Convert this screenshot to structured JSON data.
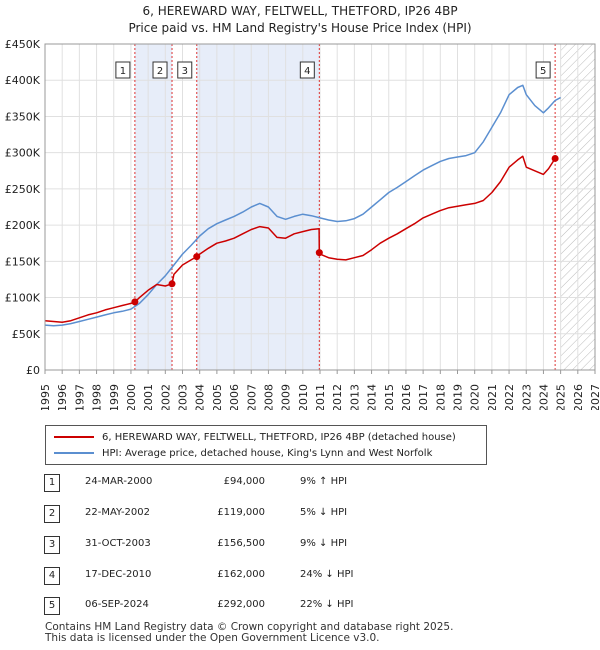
{
  "title_line1": "6, HEREWARD WAY, FELTWELL, THETFORD, IP26 4BP",
  "title_line2": "Price paid vs. HM Land Registry's House Price Index (HPI)",
  "chart_data": {
    "type": "line",
    "title": "6, HEREWARD WAY, FELTWELL, THETFORD, IP26 4BP — Price paid vs. HM Land Registry's House Price Index (HPI)",
    "xlabel": "",
    "ylabel": "",
    "xlim": [
      1995,
      2027
    ],
    "ylim": [
      0,
      450000
    ],
    "x_ticks": [
      "1995",
      "1996",
      "1997",
      "1998",
      "1999",
      "2000",
      "2001",
      "2002",
      "2003",
      "2004",
      "2005",
      "2006",
      "2007",
      "2008",
      "2009",
      "2010",
      "2011",
      "2012",
      "2013",
      "2014",
      "2015",
      "2016",
      "2017",
      "2018",
      "2019",
      "2020",
      "2021",
      "2022",
      "2023",
      "2024",
      "2025",
      "2026",
      "2027"
    ],
    "y_ticks": [
      {
        "value": 0,
        "label": "£0"
      },
      {
        "value": 50000,
        "label": "£50K"
      },
      {
        "value": 100000,
        "label": "£100K"
      },
      {
        "value": 150000,
        "label": "£150K"
      },
      {
        "value": 200000,
        "label": "£200K"
      },
      {
        "value": 250000,
        "label": "£250K"
      },
      {
        "value": 300000,
        "label": "£300K"
      },
      {
        "value": 350000,
        "label": "£350K"
      },
      {
        "value": 400000,
        "label": "£400K"
      },
      {
        "value": 450000,
        "label": "£450K"
      }
    ],
    "grid": true,
    "shaded_ranges": [
      [
        2000.23,
        2002.39
      ],
      [
        2003.83,
        2010.96
      ]
    ],
    "future_hatch_start": 2025.0,
    "series": [
      {
        "name": "6, HEREWARD WAY, FELTWELL, THETFORD, IP26 4BP (detached house)",
        "color": "#cc0000",
        "x": [
          1995,
          1995.5,
          1996,
          1996.5,
          1997,
          1997.5,
          1998,
          1998.5,
          1999,
          1999.5,
          2000,
          2000.23,
          2000.5,
          2001,
          2001.5,
          2002,
          2002.39,
          2002.5,
          2003,
          2003.5,
          2003.83,
          2004,
          2004.5,
          2005,
          2005.5,
          2006,
          2006.5,
          2007,
          2007.5,
          2008,
          2008.5,
          2009,
          2009.5,
          2010,
          2010.5,
          2010.95,
          2010.96,
          2011,
          2011.5,
          2012,
          2012.5,
          2013,
          2013.5,
          2014,
          2014.5,
          2015,
          2015.5,
          2016,
          2016.5,
          2017,
          2017.5,
          2018,
          2018.5,
          2019,
          2019.5,
          2020,
          2020.5,
          2021,
          2021.5,
          2022,
          2022.5,
          2022.8,
          2023,
          2023.5,
          2024,
          2024.3,
          2024.68
        ],
        "values": [
          68000,
          67000,
          66000,
          68000,
          72000,
          76000,
          79000,
          83000,
          86000,
          89000,
          92000,
          94000,
          100000,
          110000,
          118000,
          116000,
          119000,
          132000,
          145000,
          152000,
          156500,
          160000,
          168000,
          175000,
          178000,
          182000,
          188000,
          194000,
          198000,
          196000,
          183000,
          182000,
          188000,
          191000,
          194000,
          195000,
          162000,
          160000,
          155000,
          153000,
          152000,
          155000,
          158000,
          166000,
          175000,
          182000,
          188000,
          195000,
          202000,
          210000,
          215000,
          220000,
          224000,
          226000,
          228000,
          230000,
          234000,
          245000,
          260000,
          280000,
          290000,
          295000,
          280000,
          275000,
          270000,
          278000,
          292000
        ]
      },
      {
        "name": "HPI: Average price, detached house, King's Lynn and West Norfolk",
        "color": "#5b8fd0",
        "x": [
          1995,
          1995.5,
          1996,
          1996.5,
          1997,
          1997.5,
          1998,
          1998.5,
          1999,
          1999.5,
          2000,
          2000.5,
          2001,
          2001.5,
          2002,
          2002.5,
          2003,
          2003.5,
          2004,
          2004.5,
          2005,
          2005.5,
          2006,
          2006.5,
          2007,
          2007.5,
          2008,
          2008.5,
          2009,
          2009.5,
          2010,
          2010.5,
          2011,
          2011.5,
          2012,
          2012.5,
          2013,
          2013.5,
          2014,
          2014.5,
          2015,
          2015.5,
          2016,
          2016.5,
          2017,
          2017.5,
          2018,
          2018.5,
          2019,
          2019.5,
          2020,
          2020.5,
          2021,
          2021.5,
          2022,
          2022.5,
          2022.8,
          2023,
          2023.5,
          2024,
          2024.3,
          2024.68,
          2025
        ],
        "values": [
          62000,
          61000,
          62000,
          64000,
          67000,
          70000,
          73000,
          76000,
          79000,
          81000,
          84000,
          92000,
          104000,
          118000,
          130000,
          145000,
          160000,
          172000,
          185000,
          195000,
          202000,
          207000,
          212000,
          218000,
          225000,
          230000,
          225000,
          212000,
          208000,
          212000,
          215000,
          213000,
          210000,
          207000,
          205000,
          206000,
          209000,
          215000,
          225000,
          235000,
          245000,
          252000,
          260000,
          268000,
          276000,
          282000,
          288000,
          292000,
          294000,
          296000,
          300000,
          315000,
          335000,
          355000,
          380000,
          390000,
          393000,
          380000,
          365000,
          355000,
          362000,
          372000,
          376000
        ]
      }
    ],
    "transactions": [
      {
        "label": "1",
        "x": 2000.23,
        "value": 94000
      },
      {
        "label": "2",
        "x": 2002.39,
        "value": 119000
      },
      {
        "label": "3",
        "x": 2003.83,
        "value": 156500
      },
      {
        "label": "4",
        "x": 2010.96,
        "value": 162000
      },
      {
        "label": "5",
        "x": 2024.68,
        "value": 292000
      }
    ]
  },
  "legend": {
    "property_label": "6, HEREWARD WAY, FELTWELL, THETFORD, IP26 4BP (detached house)",
    "hpi_label": "HPI: Average price, detached house, King's Lynn and West Norfolk",
    "property_color": "#cc0000",
    "hpi_color": "#5b8fd0"
  },
  "transactions_table": [
    {
      "num": "1",
      "date": "24-MAR-2000",
      "price": "£94,000",
      "hpi": "9% ↑ HPI"
    },
    {
      "num": "2",
      "date": "22-MAY-2002",
      "price": "£119,000",
      "hpi": "5% ↓ HPI"
    },
    {
      "num": "3",
      "date": "31-OCT-2003",
      "price": "£156,500",
      "hpi": "9% ↓ HPI"
    },
    {
      "num": "4",
      "date": "17-DEC-2010",
      "price": "£162,000",
      "hpi": "24% ↓ HPI"
    },
    {
      "num": "5",
      "date": "06-SEP-2024",
      "price": "£292,000",
      "hpi": "22% ↓ HPI"
    }
  ],
  "footer": {
    "line1": "Contains HM Land Registry data © Crown copyright and database right 2025.",
    "line2": "This data is licensed under the Open Government Licence v3.0."
  }
}
